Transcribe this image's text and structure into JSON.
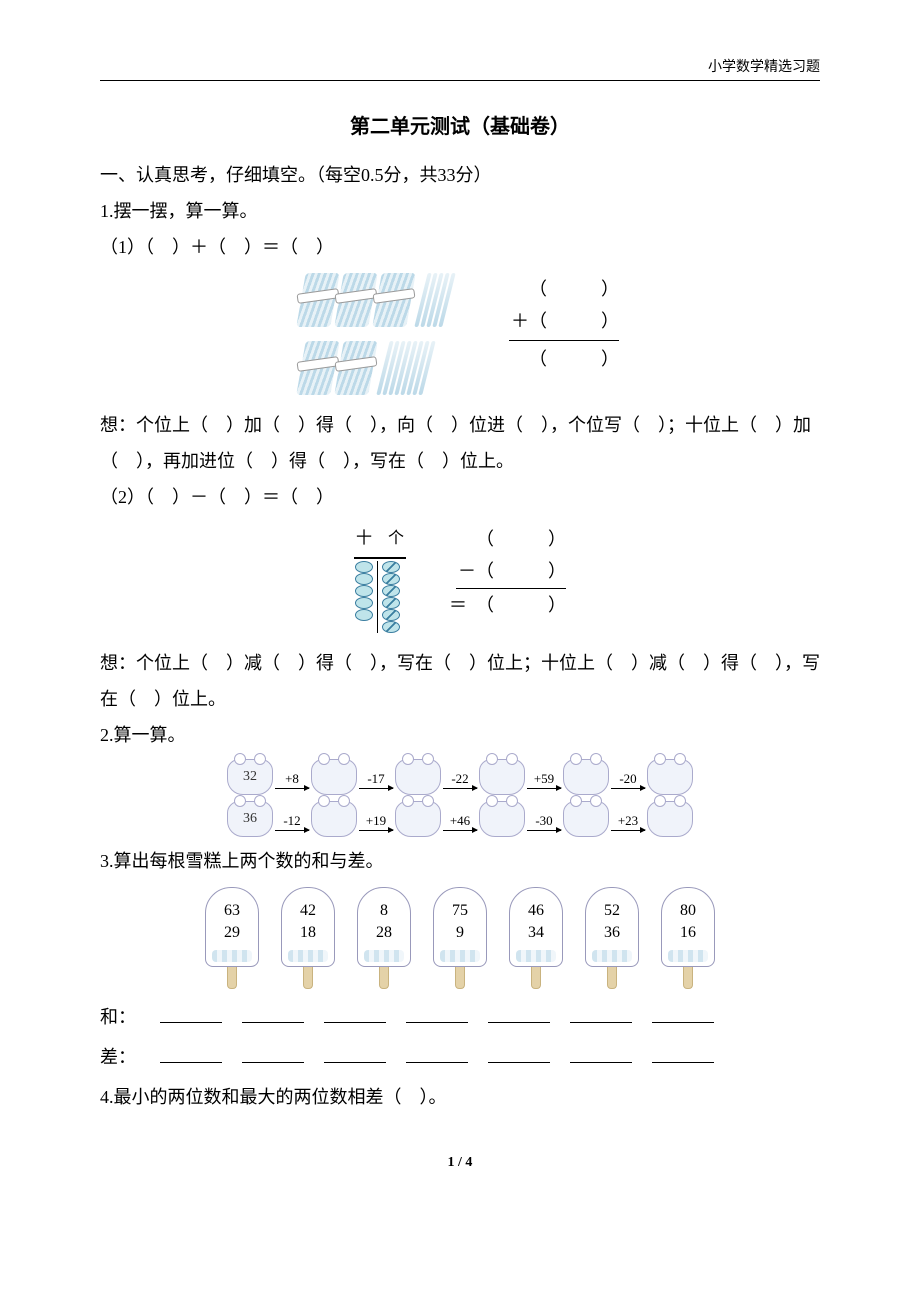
{
  "header": {
    "right": "小学数学精选习题"
  },
  "title": "第二单元测试（基础卷）",
  "section1": {
    "heading": "一、认真思考，仔细填空。（每空0.5分，共33分）",
    "q1": {
      "title": "1.摆一摆，算一算。",
      "part1": {
        "expr": "（1）（　）＋（　）＝（　）",
        "vcalc": {
          "a": "（　　　）",
          "op": "＋（　　　）",
          "res": "（　　　）"
        },
        "think": "想：个位上（　）加（　）得（　），向（　）位进（　），个位写（　）；十位上（　）加（　），再加进位（　）得（　），写在（　）位上。"
      },
      "part2": {
        "expr": "（2）（　）－（　）＝（　）",
        "labels": {
          "shi": "十",
          "ge": "个"
        },
        "tens_beads": 5,
        "ones_beads": 6,
        "vcalc": {
          "a": "（　　　）",
          "op": "－（　　　）",
          "eq": "＝",
          "res": "（　　　）"
        },
        "think": "想：个位上（　）减（　）得（　），写在（　）位上；十位上（　）减（　）得（　），写在（　）位上。"
      }
    },
    "q2": {
      "title": "2.算一算。",
      "chain1": {
        "start": "32",
        "ops": [
          "+8",
          "-17",
          "-22",
          "+59",
          "-20"
        ]
      },
      "chain2": {
        "start": "36",
        "ops": [
          "-12",
          "+19",
          "+46",
          "-30",
          "+23"
        ]
      }
    },
    "q3": {
      "title": "3.算出每根雪糕上两个数的和与差。",
      "pops": [
        {
          "a": "63",
          "b": "29"
        },
        {
          "a": "42",
          "b": "18"
        },
        {
          "a": "8",
          "b": "28"
        },
        {
          "a": "75",
          "b": "9"
        },
        {
          "a": "46",
          "b": "34"
        },
        {
          "a": "52",
          "b": "36"
        },
        {
          "a": "80",
          "b": "16"
        }
      ],
      "sum_label": "和：",
      "diff_label": "差："
    },
    "q4": {
      "text": "4.最小的两位数和最大的两位数相差（　）。"
    }
  },
  "footer": {
    "page": "1 / 4"
  },
  "colors": {
    "stick": "#bcd9e8",
    "bead_fill": "#bfe4ea",
    "bead_stroke": "#3a7ea0"
  }
}
